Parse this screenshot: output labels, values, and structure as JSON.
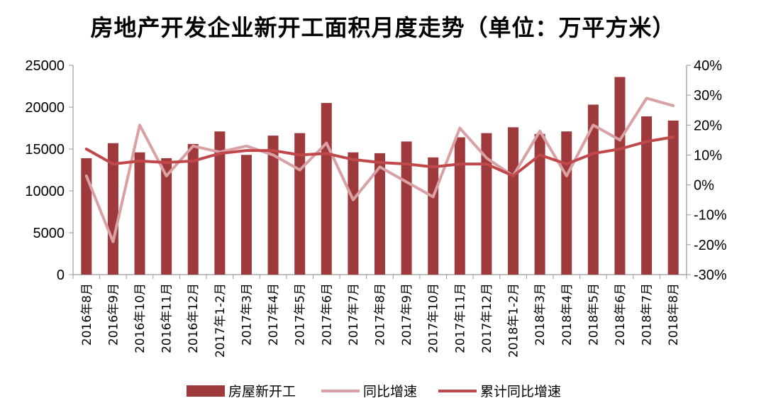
{
  "title": "房地产开发企业新开工面积月度走势（单位：万平方米）",
  "colors": {
    "bar": "#9e3a3b",
    "yoy": "#d9a1a4",
    "cum": "#c0484a"
  },
  "chart_data": {
    "type": "bar",
    "title": "房地产开发企业新开工面积月度走势（单位：万平方米）",
    "categories": [
      "2016年8月",
      "2016年9月",
      "2016年10月",
      "2016年11月",
      "2016年12月",
      "2017年1-2月",
      "2017年3月",
      "2017年4月",
      "2017年5月",
      "2017年6月",
      "2017年7月",
      "2017年8月",
      "2017年9月",
      "2017年10月",
      "2017年11月",
      "2017年12月",
      "2018年1-2月",
      "2018年3月",
      "2018年4月",
      "2018年5月",
      "2018年6月",
      "2018年7月",
      "2018年8月"
    ],
    "y_left": {
      "ylim": [
        0,
        25000
      ],
      "ticks": [
        "0",
        "5000",
        "10000",
        "15000",
        "20000",
        "25000"
      ]
    },
    "y_right": {
      "ylim": [
        -30,
        40
      ],
      "ticks": [
        "-30%",
        "-20%",
        "-10%",
        "0%",
        "10%",
        "20%",
        "30%",
        "40%"
      ]
    },
    "legend_position": "bottom",
    "series": [
      {
        "name": "房屋新开工",
        "type": "bar",
        "axis": "left",
        "values": [
          13900,
          15700,
          14600,
          13900,
          15600,
          17100,
          14300,
          16600,
          16900,
          20500,
          14600,
          14500,
          15900,
          14000,
          16400,
          16900,
          17600,
          16800,
          17100,
          20300,
          23600,
          18900,
          18400
        ]
      },
      {
        "name": "同比增速",
        "type": "line",
        "axis": "right",
        "values": [
          3,
          -19,
          20,
          3,
          13,
          11,
          13,
          10,
          5,
          14,
          -5,
          6,
          1,
          -4,
          19,
          9,
          3,
          18,
          3,
          20,
          15,
          29,
          26.5
        ]
      },
      {
        "name": "累计同比增速",
        "type": "line",
        "axis": "right",
        "values": [
          12,
          7,
          8,
          7.5,
          8,
          10.5,
          11.5,
          11.5,
          10,
          10.5,
          8.5,
          7.5,
          7,
          6,
          7,
          7,
          3,
          10,
          7,
          10.5,
          12,
          14.5,
          16
        ]
      }
    ]
  }
}
